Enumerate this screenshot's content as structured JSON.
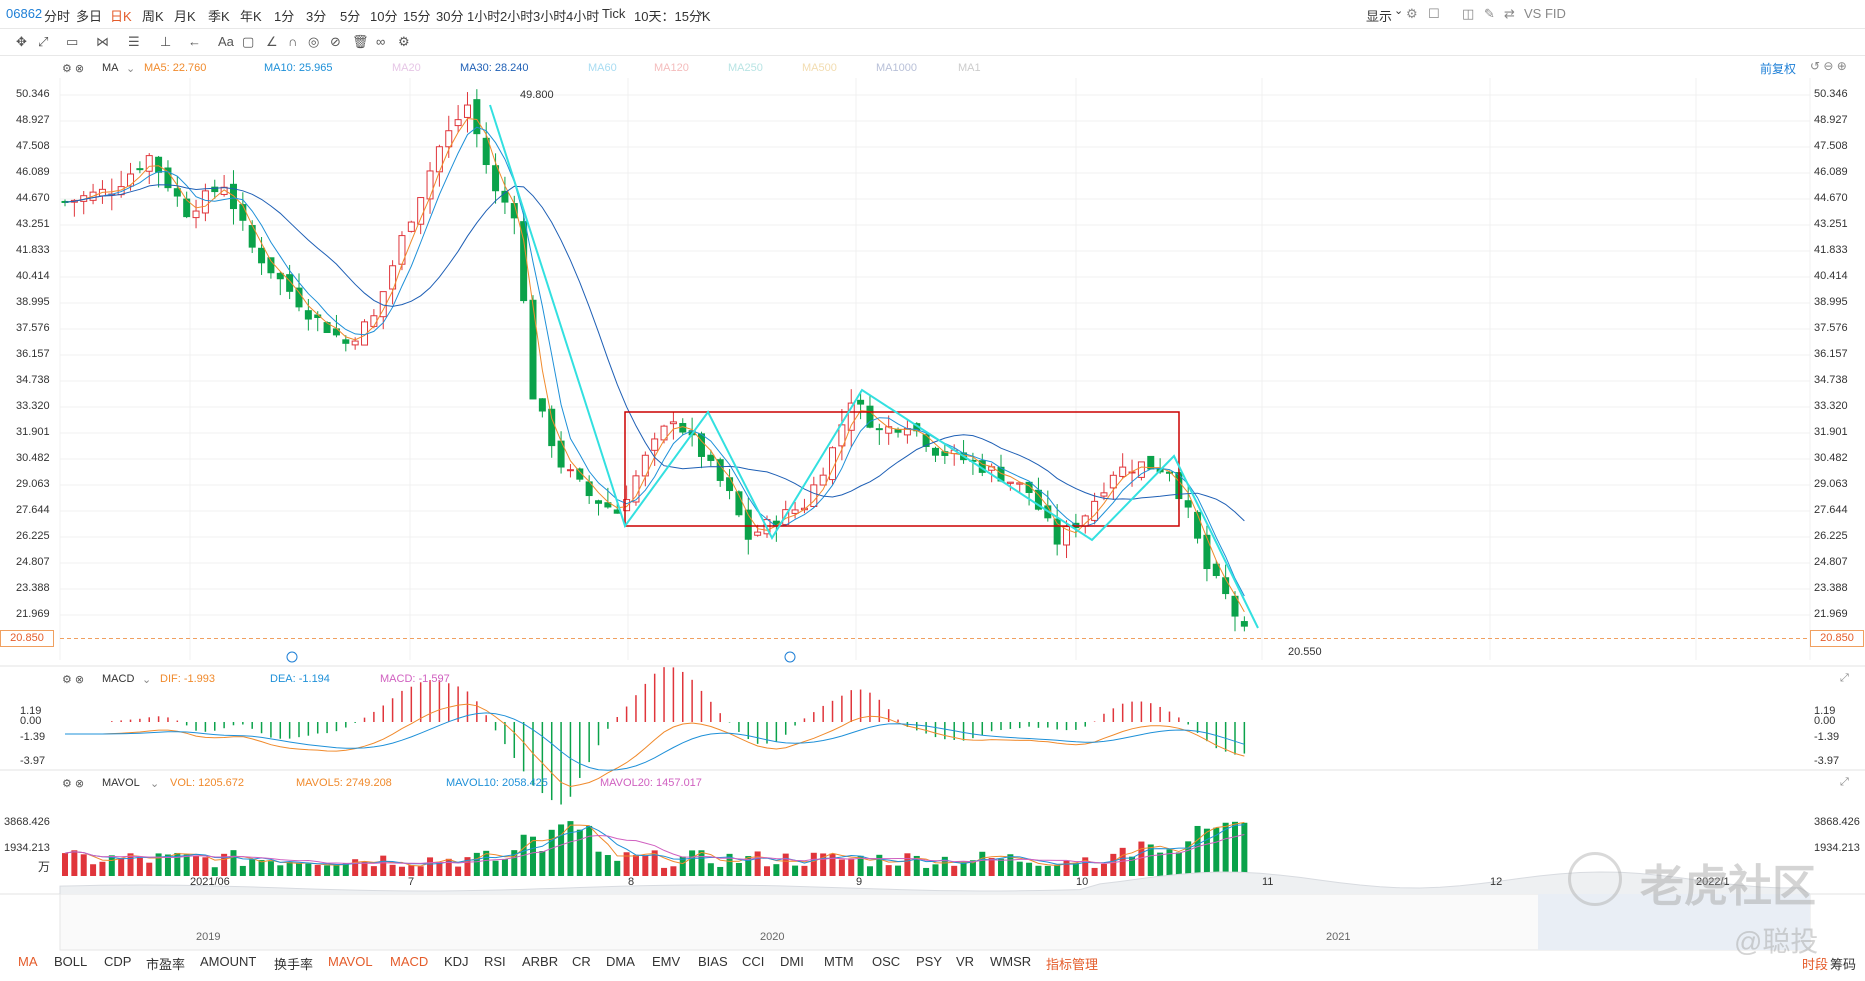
{
  "toolbar": {
    "code": "06862",
    "periods": [
      "分时",
      "多日",
      "日K",
      "周K",
      "月K",
      "季K",
      "年K",
      "1分",
      "3分",
      "5分",
      "10分",
      "15分",
      "30分",
      "1小时",
      "2小时",
      "3小时",
      "4小时",
      "Tick",
      "10天：15分K"
    ],
    "active_period": "日K",
    "display_label": "显示",
    "vs_label": "VS FID"
  },
  "main_panel": {
    "indicator": "MA",
    "ma5": "MA5: 22.760",
    "ma10": "MA10: 25.965",
    "ma20": "MA20",
    "ma30": "MA30: 28.240",
    "ma60": "MA60",
    "ma120": "MA120",
    "ma250": "MA250",
    "ma500": "MA500",
    "ma1000": "MA1000",
    "ma_extra": "MA1",
    "adjust_label": "前复权",
    "y_ticks": [
      "50.346",
      "48.927",
      "47.508",
      "46.089",
      "44.670",
      "43.251",
      "41.833",
      "40.414",
      "38.995",
      "37.576",
      "36.157",
      "34.738",
      "33.320",
      "31.901",
      "30.482",
      "29.063",
      "27.644",
      "26.225",
      "24.807",
      "23.388",
      "21.969"
    ],
    "current_price": "20.850",
    "high_label": "49.800",
    "low_label": "20.550"
  },
  "macd_panel": {
    "indicator": "MACD",
    "dif": "DIF: -1.993",
    "dea": "DEA: -1.194",
    "macd": "MACD: -1.597",
    "y_ticks": [
      "1.19",
      "0.00",
      "-1.39",
      "-3.97"
    ]
  },
  "vol_panel": {
    "indicator": "MAVOL",
    "vol": "VOL: 1205.672",
    "mavol5": "MAVOL5: 2749.208",
    "mavol10": "MAVOL10: 2058.425",
    "mavol20": "MAVOL20: 1457.017",
    "y_ticks": [
      "3868.426",
      "1934.213"
    ],
    "unit": "万"
  },
  "x_axis": {
    "labels": [
      "2021/06",
      "7",
      "8",
      "9",
      "10",
      "11",
      "12",
      "2022/1"
    ]
  },
  "overview": {
    "labels": [
      "2019",
      "2020",
      "2021"
    ]
  },
  "bottom_tabs": [
    "MA",
    "BOLL",
    "CDP",
    "市盈率",
    "AMOUNT",
    "换手率",
    "MAVOL",
    "MACD",
    "KDJ",
    "RSI",
    "ARBR",
    "CR",
    "DMA",
    "EMV",
    "BIAS",
    "CCI",
    "DMI",
    "MTM",
    "OSC",
    "PSY",
    "VR",
    "WMSR",
    "指标管理"
  ],
  "bottom_right": [
    "时段",
    "筹码"
  ],
  "watermark": {
    "line1": "老虎社区",
    "line2": "@聪投"
  },
  "colors": {
    "up": "#e0353b",
    "down": "#0aa24a",
    "accent": "#e45c2b",
    "link": "#1e7fd6",
    "cyan": "#33e0e0",
    "box": "#cc0000"
  }
}
